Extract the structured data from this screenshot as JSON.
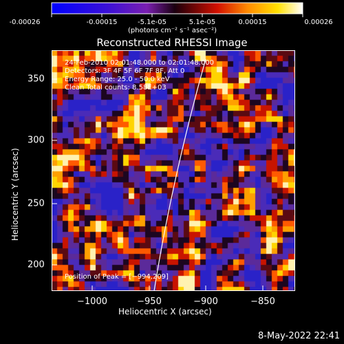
{
  "colorbar": {
    "ticks": [
      "-0.00026",
      "-0.00015",
      "-5.1e-05",
      "5.1e-05",
      "0.00015",
      "0.00026"
    ],
    "units": "(photons cm⁻² s⁻¹ asec⁻²)"
  },
  "plot": {
    "title": "Reconstructed RHESSI Image",
    "xlabel": "Heliocentric X (arcsec)",
    "ylabel": "Heliocentric Y (arcsec)",
    "xticks": [
      "−1000",
      "−950",
      "−900",
      "−850"
    ],
    "yticks": [
      "350",
      "300",
      "250",
      "200"
    ],
    "info_lines": [
      "24-Feb-2010 02:01:48.000 to 02:01:48.000",
      "Detectors: 3F 4F 5F 6F 7F 8F, Att 0",
      "Energy Range: 25.0 - 50.0 keV",
      "Clean     Total counts: 8.58E+03"
    ],
    "peak_text": "Position of Peak = [−994,209]"
  },
  "timestamp": "8-May-2022 22:41"
}
